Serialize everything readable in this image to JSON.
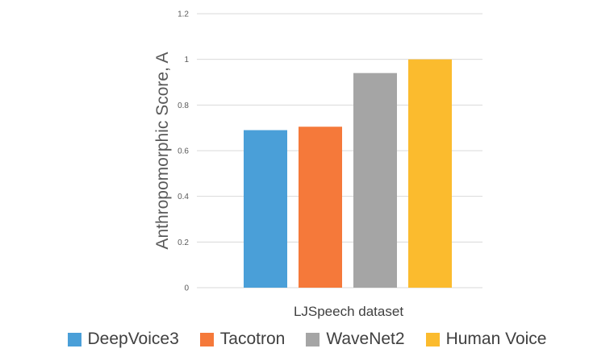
{
  "chart_data": {
    "type": "bar",
    "title": "",
    "xlabel": "LJSpeech dataset",
    "ylabel": "Anthropomorphic Score, A",
    "ylim": [
      0,
      1.2
    ],
    "yticks": [
      "0",
      "0.2",
      "0.4",
      "0.6",
      "0.8",
      "1",
      "1.2"
    ],
    "grid": true,
    "legend_position": "bottom",
    "categories": [
      "LJSpeech dataset"
    ],
    "series": [
      {
        "name": "DeepVoice3",
        "values": [
          0.69
        ],
        "color": "#4a9fd8"
      },
      {
        "name": "Tacotron",
        "values": [
          0.705
        ],
        "color": "#f5793a"
      },
      {
        "name": "WaveNet2",
        "values": [
          0.94
        ],
        "color": "#a5a5a5"
      },
      {
        "name": "Human Voice",
        "values": [
          1.0
        ],
        "color": "#fbbb2e"
      }
    ]
  }
}
